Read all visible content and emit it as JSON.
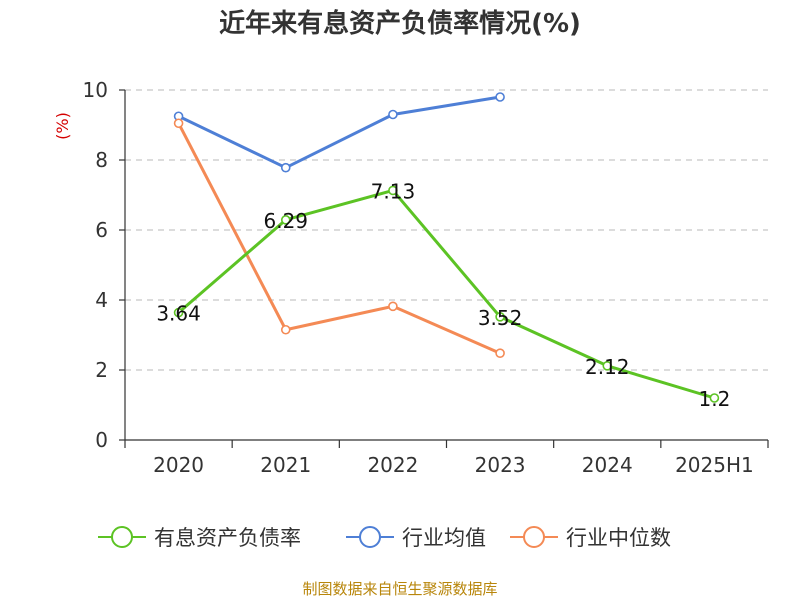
{
  "chart_data": {
    "type": "line",
    "title": "近年来有息资产负债率情况(%)",
    "ylabel": "(%)",
    "ylim": [
      0,
      10
    ],
    "yticks": [
      0,
      2,
      4,
      6,
      8,
      10
    ],
    "categories": [
      "2020",
      "2021",
      "2022",
      "2023",
      "2024",
      "2025H1"
    ],
    "grid": true,
    "legend_position": "bottom",
    "series": [
      {
        "name": "有息资产负债率",
        "color": "#5cc324",
        "values": [
          3.64,
          6.29,
          7.13,
          3.52,
          2.12,
          1.2
        ],
        "labels": [
          "3.64",
          "6.29",
          "7.13",
          "3.52",
          "2.12",
          "1.2"
        ],
        "show_labels": true
      },
      {
        "name": "行业均值",
        "color": "#4e7fd6",
        "values": [
          9.25,
          7.78,
          9.3,
          9.8,
          null,
          null
        ],
        "show_labels": false
      },
      {
        "name": "行业中位数",
        "color": "#f48a55",
        "values": [
          9.05,
          3.15,
          3.82,
          2.48,
          null,
          null
        ],
        "show_labels": false
      }
    ]
  },
  "source": "制图数据来自恒生聚源数据库"
}
